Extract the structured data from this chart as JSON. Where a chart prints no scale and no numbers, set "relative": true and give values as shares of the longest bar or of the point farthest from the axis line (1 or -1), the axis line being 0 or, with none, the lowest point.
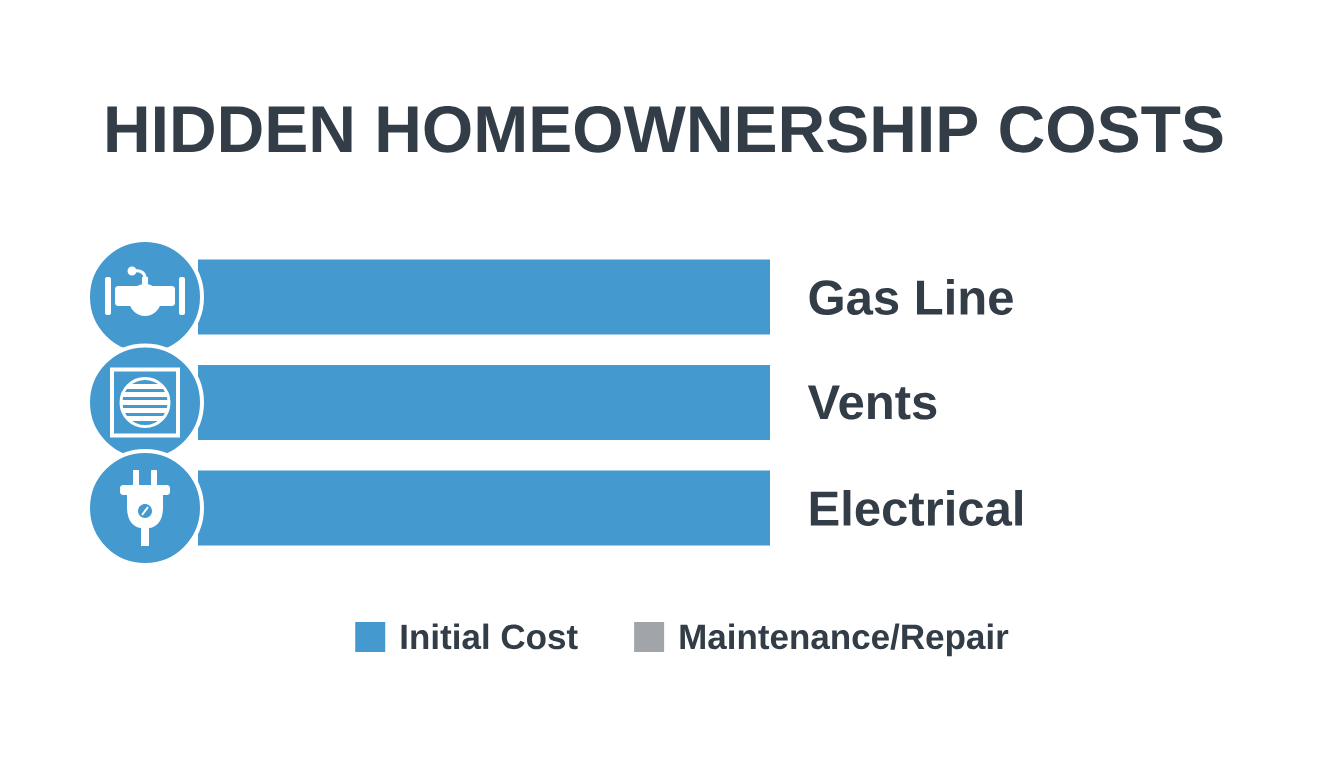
{
  "chart_data": {
    "type": "bar",
    "orientation": "horizontal",
    "title": "HIDDEN HOMEOWNERSHIP COSTS",
    "categories": [
      "Gas Line",
      "Vents",
      "Electrical"
    ],
    "relative": true,
    "stacked": true,
    "series": [
      {
        "name": "Initial Cost",
        "color": "#4499cf",
        "values": [
          1,
          1,
          1
        ]
      },
      {
        "name": "Maintenance/Repair",
        "color": "#a1a4a8",
        "values": [
          null,
          null,
          null
        ]
      }
    ],
    "legend": "bottom"
  }
}
